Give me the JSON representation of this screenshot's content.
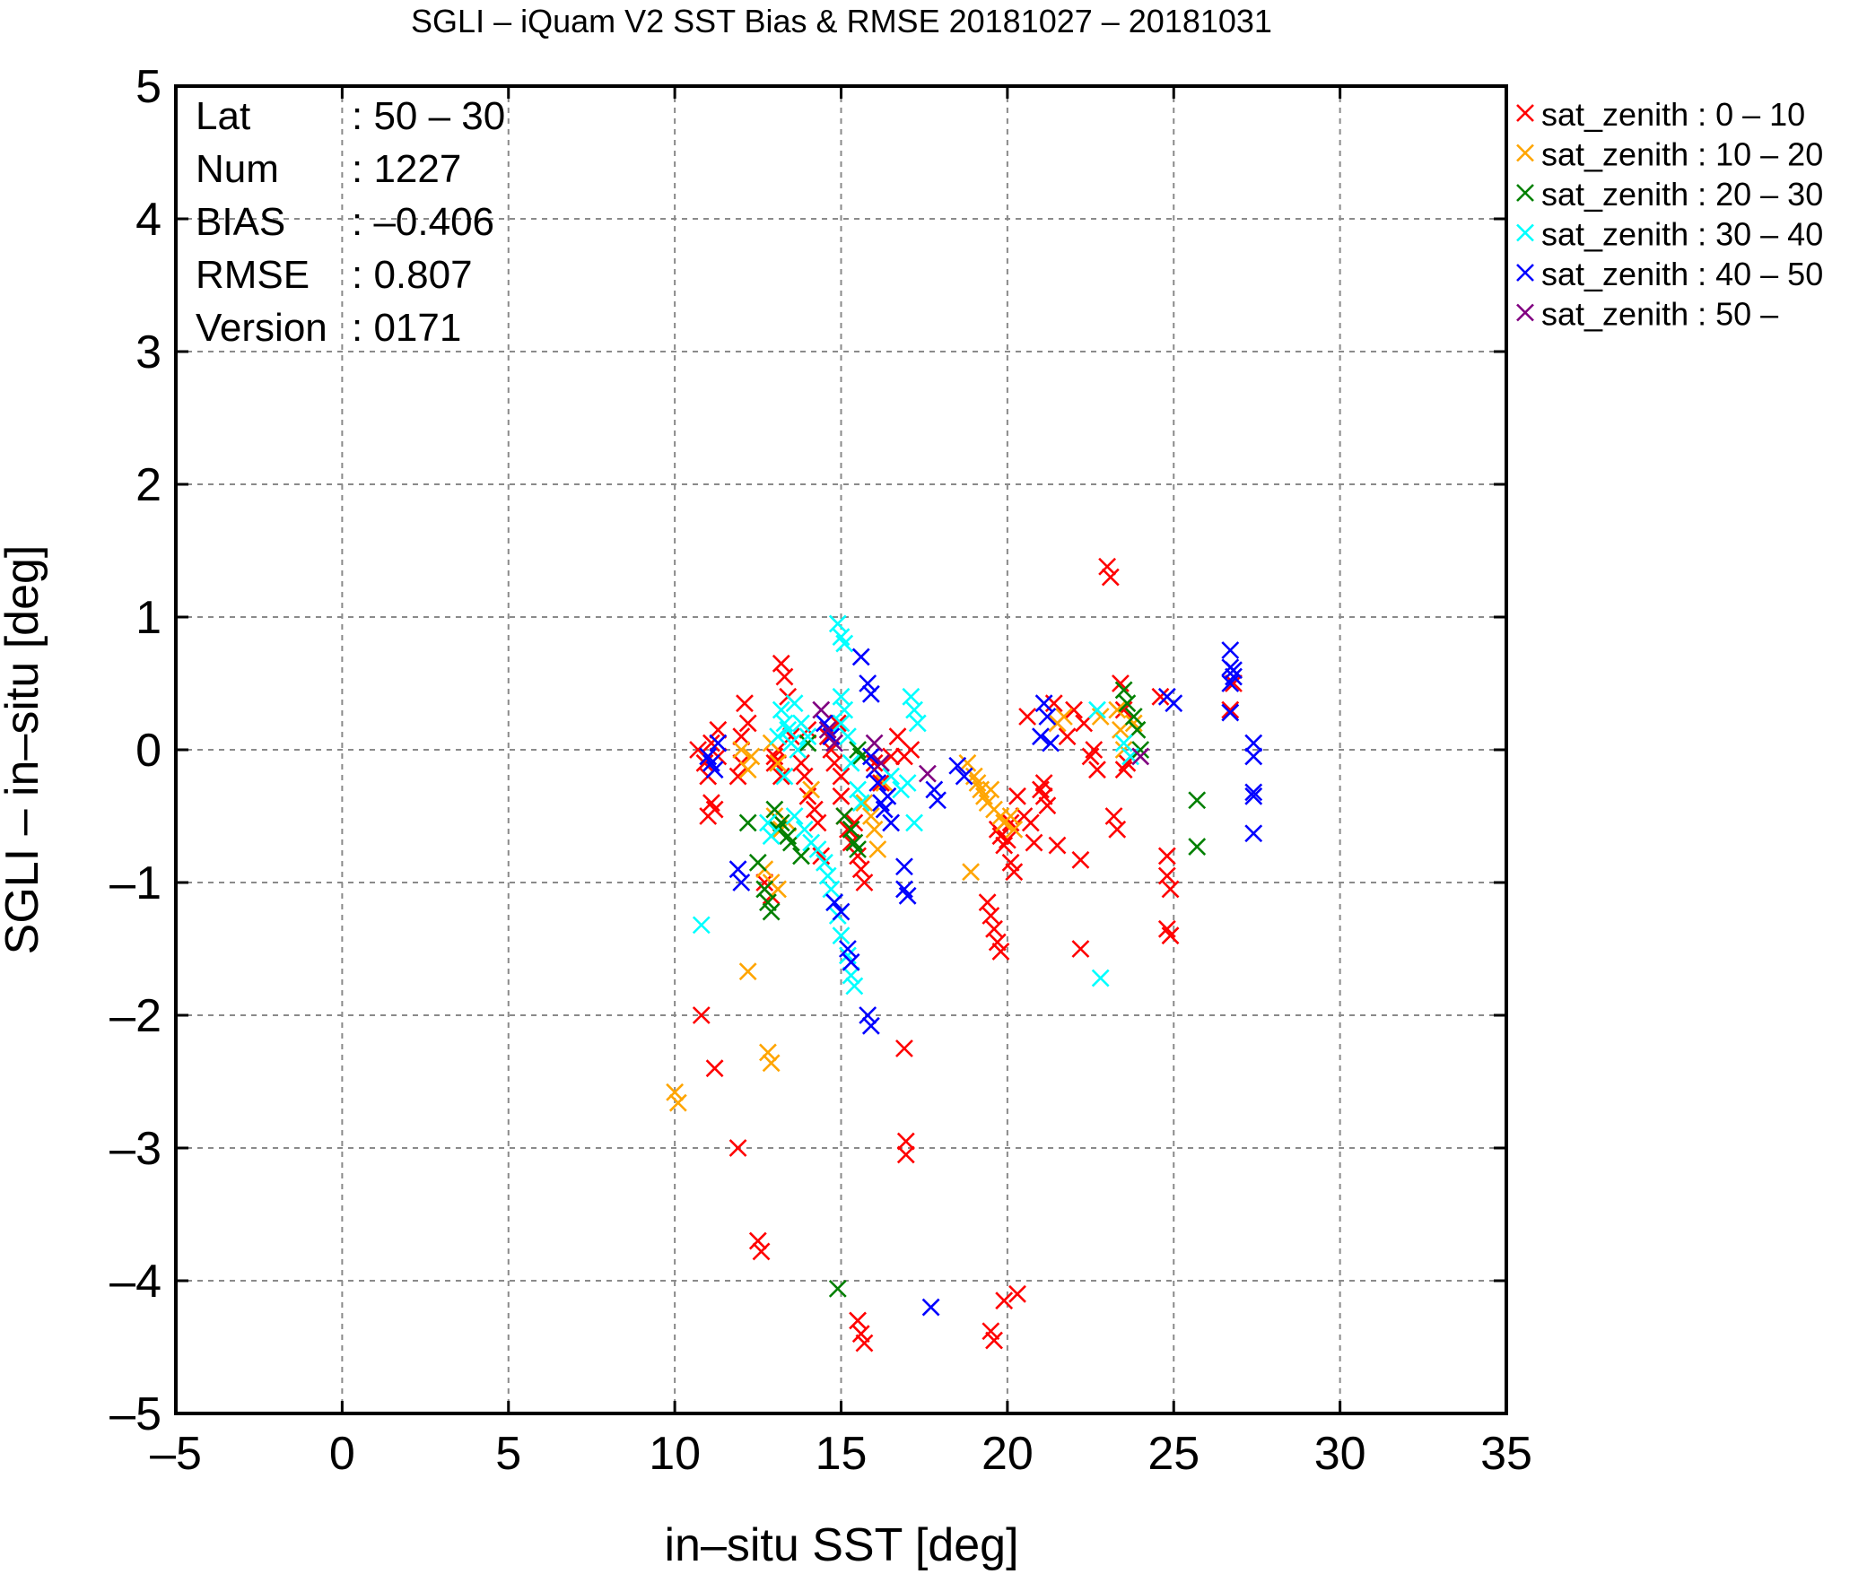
{
  "chart_data": {
    "type": "scatter",
    "title": "SGLI – iQuam V2 SST Bias & RMSE 20181027 – 20181031",
    "xlabel": "in–situ SST [deg]",
    "ylabel": "SGLI – in–situ [deg]",
    "xlim": [
      -5,
      35
    ],
    "ylim": [
      -5,
      5
    ],
    "x_ticks": [
      "–5",
      "0",
      "5",
      "10",
      "15",
      "20",
      "25",
      "30",
      "35"
    ],
    "y_ticks": [
      "5",
      "4",
      "3",
      "2",
      "1",
      "0",
      "–1",
      "–2",
      "–3",
      "–4",
      "–5"
    ],
    "grid": true,
    "legend_position": "outside-right",
    "marker": "x",
    "stats": [
      {
        "label": "Lat",
        "value": ": 50 – 30"
      },
      {
        "label": "Num",
        "value": ": 1227"
      },
      {
        "label": "BIAS",
        "value": ": –0.406"
      },
      {
        "label": "RMSE",
        "value": ": 0.807"
      },
      {
        "label": "Version",
        "value": ": 0171"
      }
    ],
    "series": [
      {
        "name": "sat_zenith :  0 – 10",
        "color": "#ff0000",
        "points": [
          [
            10.7,
            0.0
          ],
          [
            10.9,
            -0.1
          ],
          [
            11.0,
            -0.2
          ],
          [
            11.1,
            -0.4
          ],
          [
            11.0,
            -0.5
          ],
          [
            11.2,
            -0.45
          ],
          [
            11.3,
            0.15
          ],
          [
            11.3,
            -0.05
          ],
          [
            11.1,
            0.05
          ],
          [
            10.8,
            -2.0
          ],
          [
            11.2,
            -2.4
          ],
          [
            11.9,
            -3.0
          ],
          [
            12.5,
            -3.7
          ],
          [
            12.6,
            -3.78
          ],
          [
            12.1,
            0.35
          ],
          [
            12.2,
            0.2
          ],
          [
            12.0,
            0.1
          ],
          [
            11.9,
            -0.2
          ],
          [
            12.0,
            -0.1
          ],
          [
            12.7,
            -1.0
          ],
          [
            12.9,
            -1.1
          ],
          [
            13.2,
            0.65
          ],
          [
            13.3,
            0.55
          ],
          [
            13.4,
            0.4
          ],
          [
            13.0,
            -0.05
          ],
          [
            13.1,
            0.0
          ],
          [
            13.2,
            -0.2
          ],
          [
            13.0,
            -0.1
          ],
          [
            13.5,
            0.1
          ],
          [
            13.8,
            -0.1
          ],
          [
            13.9,
            -0.2
          ],
          [
            14.0,
            -0.35
          ],
          [
            14.2,
            -0.45
          ],
          [
            14.3,
            -0.55
          ],
          [
            14.4,
            -0.8
          ],
          [
            14.0,
            0.15
          ],
          [
            14.6,
            0.1
          ],
          [
            14.7,
            0.0
          ],
          [
            14.8,
            -0.1
          ],
          [
            14.9,
            0.2
          ],
          [
            15.0,
            -0.2
          ],
          [
            15.0,
            -0.35
          ],
          [
            15.1,
            -0.5
          ],
          [
            15.2,
            -0.6
          ],
          [
            15.3,
            -0.7
          ],
          [
            15.4,
            -0.55
          ],
          [
            15.5,
            -0.8
          ],
          [
            15.6,
            -0.9
          ],
          [
            15.7,
            -1.0
          ],
          [
            15.5,
            -4.3
          ],
          [
            15.6,
            -4.4
          ],
          [
            15.7,
            -4.47
          ],
          [
            16.0,
            -0.1
          ],
          [
            16.2,
            -0.25
          ],
          [
            16.5,
            -0.05
          ],
          [
            16.7,
            0.1
          ],
          [
            16.9,
            -0.05
          ],
          [
            17.1,
            0.0
          ],
          [
            16.9,
            -2.25
          ],
          [
            16.95,
            -2.95
          ],
          [
            16.95,
            -3.05
          ],
          [
            19.4,
            -1.15
          ],
          [
            19.5,
            -1.25
          ],
          [
            19.6,
            -1.35
          ],
          [
            19.7,
            -1.45
          ],
          [
            19.8,
            -1.52
          ],
          [
            19.5,
            -4.38
          ],
          [
            19.6,
            -4.45
          ],
          [
            19.9,
            -4.15
          ],
          [
            20.3,
            -4.1
          ],
          [
            19.8,
            -0.65
          ],
          [
            19.9,
            -0.72
          ],
          [
            20.0,
            -0.68
          ],
          [
            19.7,
            -0.6
          ],
          [
            20.1,
            -0.85
          ],
          [
            20.2,
            -0.92
          ],
          [
            20.1,
            -0.55
          ],
          [
            20.3,
            -0.35
          ],
          [
            20.5,
            -0.5
          ],
          [
            20.7,
            -0.55
          ],
          [
            20.8,
            -0.7
          ],
          [
            20.6,
            0.25
          ],
          [
            21.0,
            -0.3
          ],
          [
            21.1,
            -0.35
          ],
          [
            21.2,
            -0.42
          ],
          [
            21.1,
            -0.25
          ],
          [
            21.5,
            -0.72
          ],
          [
            22.2,
            -0.83
          ],
          [
            22.2,
            -1.5
          ],
          [
            21.4,
            0.35
          ],
          [
            21.5,
            0.2
          ],
          [
            21.8,
            0.1
          ],
          [
            22.0,
            0.3
          ],
          [
            22.3,
            0.2
          ],
          [
            22.6,
            0.0
          ],
          [
            22.7,
            -0.15
          ],
          [
            22.5,
            -0.05
          ],
          [
            23.0,
            1.38
          ],
          [
            23.1,
            1.3
          ],
          [
            23.2,
            -0.5
          ],
          [
            23.3,
            -0.6
          ],
          [
            23.4,
            0.5
          ],
          [
            23.5,
            0.3
          ],
          [
            23.6,
            -0.1
          ],
          [
            23.5,
            -0.15
          ],
          [
            24.6,
            0.4
          ],
          [
            24.8,
            -0.8
          ],
          [
            24.8,
            -0.95
          ],
          [
            24.9,
            -1.05
          ],
          [
            24.8,
            -1.35
          ],
          [
            24.9,
            -1.4
          ],
          [
            26.8,
            0.5
          ],
          [
            26.7,
            0.3
          ]
        ]
      },
      {
        "name": "sat_zenith : 10 – 20",
        "color": "#ffa500",
        "points": [
          [
            10.0,
            -2.58
          ],
          [
            10.1,
            -2.66
          ],
          [
            12.8,
            -2.28
          ],
          [
            12.9,
            -2.36
          ],
          [
            12.2,
            -1.67
          ],
          [
            12.0,
            0.0
          ],
          [
            12.2,
            -0.15
          ],
          [
            12.3,
            -0.05
          ],
          [
            12.9,
            0.05
          ],
          [
            13.1,
            -0.1
          ],
          [
            13.0,
            -0.5
          ],
          [
            13.2,
            -0.6
          ],
          [
            13.4,
            -0.55
          ],
          [
            12.7,
            -0.9
          ],
          [
            12.9,
            -1.0
          ],
          [
            13.1,
            -1.05
          ],
          [
            14.1,
            -0.3
          ],
          [
            15.7,
            -0.4
          ],
          [
            15.9,
            -0.5
          ],
          [
            16.0,
            -0.6
          ],
          [
            16.1,
            -0.75
          ],
          [
            16.3,
            -0.25
          ],
          [
            18.8,
            -0.1
          ],
          [
            19.0,
            -0.2
          ],
          [
            19.1,
            -0.25
          ],
          [
            19.2,
            -0.3
          ],
          [
            19.3,
            -0.35
          ],
          [
            19.4,
            -0.4
          ],
          [
            19.5,
            -0.3
          ],
          [
            19.6,
            -0.45
          ],
          [
            19.8,
            -0.5
          ],
          [
            19.9,
            -0.55
          ],
          [
            20.1,
            -0.5
          ],
          [
            20.2,
            -0.6
          ],
          [
            18.9,
            -0.92
          ],
          [
            21.5,
            0.2
          ],
          [
            21.7,
            0.25
          ],
          [
            23.3,
            0.3
          ],
          [
            23.4,
            0.15
          ],
          [
            23.5,
            0.0
          ],
          [
            23.8,
            0.2
          ],
          [
            22.8,
            0.25
          ]
        ]
      },
      {
        "name": "sat_zenith : 20 – 30",
        "color": "#008000",
        "points": [
          [
            12.2,
            -0.55
          ],
          [
            12.5,
            -0.85
          ],
          [
            12.7,
            -1.05
          ],
          [
            12.8,
            -1.15
          ],
          [
            12.9,
            -1.22
          ],
          [
            13.0,
            -0.45
          ],
          [
            13.1,
            -0.6
          ],
          [
            13.2,
            -0.55
          ],
          [
            13.4,
            -0.65
          ],
          [
            13.5,
            -0.7
          ],
          [
            13.8,
            -0.8
          ],
          [
            14.0,
            0.05
          ],
          [
            15.1,
            -0.5
          ],
          [
            15.3,
            -0.6
          ],
          [
            15.4,
            -0.7
          ],
          [
            15.5,
            -0.75
          ],
          [
            15.6,
            -0.05
          ],
          [
            15.5,
            0.0
          ],
          [
            14.9,
            -4.06
          ],
          [
            23.5,
            0.45
          ],
          [
            23.6,
            0.35
          ],
          [
            23.8,
            0.25
          ],
          [
            23.9,
            0.15
          ],
          [
            24.0,
            0.0
          ],
          [
            25.7,
            -0.38
          ],
          [
            25.7,
            -0.73
          ]
        ]
      },
      {
        "name": "sat_zenith : 30 – 40",
        "color": "#00ffff",
        "points": [
          [
            10.8,
            -1.32
          ],
          [
            12.8,
            -0.55
          ],
          [
            12.9,
            -0.65
          ],
          [
            13.2,
            0.3
          ],
          [
            13.3,
            0.2
          ],
          [
            13.4,
            0.15
          ],
          [
            13.5,
            0.05
          ],
          [
            13.3,
            -0.2
          ],
          [
            13.1,
            0.1
          ],
          [
            13.6,
            0.35
          ],
          [
            13.7,
            0.0
          ],
          [
            13.8,
            0.2
          ],
          [
            14.0,
            0.1
          ],
          [
            13.6,
            -0.5
          ],
          [
            13.9,
            -0.6
          ],
          [
            14.1,
            -0.7
          ],
          [
            14.3,
            -0.75
          ],
          [
            14.5,
            -0.85
          ],
          [
            14.6,
            -0.95
          ],
          [
            14.7,
            -1.05
          ],
          [
            14.8,
            -1.15
          ],
          [
            14.9,
            -1.25
          ],
          [
            15.0,
            -1.4
          ],
          [
            15.2,
            -1.55
          ],
          [
            15.3,
            -1.7
          ],
          [
            15.4,
            -1.78
          ],
          [
            14.9,
            0.95
          ],
          [
            15.0,
            0.85
          ],
          [
            15.1,
            0.8
          ],
          [
            15.0,
            0.4
          ],
          [
            15.1,
            0.3
          ],
          [
            15.0,
            0.2
          ],
          [
            15.2,
            0.1
          ],
          [
            15.3,
            -0.1
          ],
          [
            15.5,
            -0.3
          ],
          [
            15.6,
            -0.4
          ],
          [
            16.5,
            -0.2
          ],
          [
            16.8,
            -0.3
          ],
          [
            17.0,
            -0.25
          ],
          [
            17.2,
            -0.55
          ],
          [
            17.1,
            0.4
          ],
          [
            17.2,
            0.3
          ],
          [
            17.3,
            0.2
          ],
          [
            22.8,
            -1.72
          ],
          [
            22.7,
            0.3
          ],
          [
            23.5,
            0.05
          ],
          [
            23.7,
            -0.05
          ]
        ]
      },
      {
        "name": "sat_zenith : 40 – 50",
        "color": "#0000ff",
        "points": [
          [
            11.0,
            -0.05
          ],
          [
            11.1,
            -0.1
          ],
          [
            11.3,
            0.05
          ],
          [
            11.2,
            -0.15
          ],
          [
            11.9,
            -0.9
          ],
          [
            12.0,
            -1.0
          ],
          [
            14.5,
            0.2
          ],
          [
            14.7,
            0.1
          ],
          [
            14.8,
            -1.15
          ],
          [
            15.0,
            -1.22
          ],
          [
            15.2,
            -1.5
          ],
          [
            15.3,
            -1.6
          ],
          [
            15.8,
            -2.0
          ],
          [
            15.9,
            -2.08
          ],
          [
            15.6,
            0.7
          ],
          [
            15.8,
            0.5
          ],
          [
            15.9,
            0.42
          ],
          [
            15.9,
            -0.05
          ],
          [
            16.0,
            -0.15
          ],
          [
            16.1,
            -0.25
          ],
          [
            16.2,
            -0.4
          ],
          [
            16.3,
            -0.45
          ],
          [
            16.4,
            -0.35
          ],
          [
            16.5,
            -0.55
          ],
          [
            16.9,
            -0.88
          ],
          [
            16.9,
            -1.05
          ],
          [
            17.0,
            -1.1
          ],
          [
            17.7,
            -4.2
          ],
          [
            17.8,
            -0.3
          ],
          [
            17.9,
            -0.38
          ],
          [
            18.5,
            -0.12
          ],
          [
            18.7,
            -0.2
          ],
          [
            21.1,
            0.35
          ],
          [
            21.2,
            0.25
          ],
          [
            21.0,
            0.1
          ],
          [
            21.3,
            0.05
          ],
          [
            24.8,
            0.4
          ],
          [
            25.0,
            0.35
          ],
          [
            26.7,
            0.75
          ],
          [
            26.7,
            0.62
          ],
          [
            26.8,
            0.55
          ],
          [
            26.7,
            0.5
          ],
          [
            26.8,
            0.6
          ],
          [
            26.7,
            0.28
          ],
          [
            27.4,
            0.05
          ],
          [
            27.4,
            -0.05
          ],
          [
            27.4,
            -0.32
          ],
          [
            27.4,
            -0.35
          ],
          [
            27.4,
            -0.63
          ]
        ]
      },
      {
        "name": "sat_zenith : 50 –",
        "color": "#800080",
        "points": [
          [
            14.4,
            0.3
          ],
          [
            14.6,
            0.15
          ],
          [
            14.8,
            0.05
          ],
          [
            16.0,
            0.05
          ],
          [
            16.2,
            -0.1
          ],
          [
            17.6,
            -0.18
          ],
          [
            24.0,
            -0.05
          ]
        ]
      }
    ]
  }
}
